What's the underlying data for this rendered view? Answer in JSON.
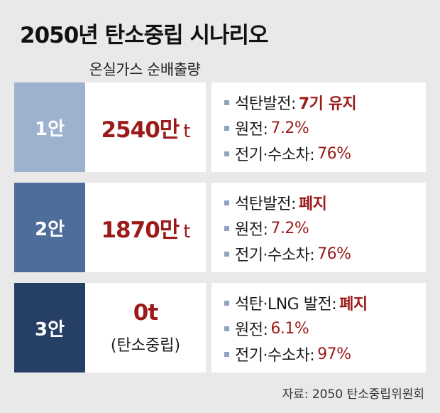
{
  "title": "2050년 탄소중립 시나리오",
  "column_header": "온실가스 순배출량",
  "colors": {
    "row1": "#9cb2cf",
    "row2": "#4d6d9b",
    "row3": "#253f67",
    "accent": "#9b1b1b",
    "bullet": "#8fa3bf"
  },
  "scenarios": [
    {
      "label": "1안",
      "value_number": "2540만",
      "value_unit": "t",
      "value_sub": "",
      "details": [
        {
          "key": "석탄발전:",
          "value": "7기 유지"
        },
        {
          "key": "원전:",
          "value": "7.2%"
        },
        {
          "key": "전기·수소차:",
          "value": "76%"
        }
      ]
    },
    {
      "label": "2안",
      "value_number": "1870만",
      "value_unit": "t",
      "value_sub": "",
      "details": [
        {
          "key": "석탄발전:",
          "value": "폐지"
        },
        {
          "key": "원전:",
          "value": "7.2%"
        },
        {
          "key": "전기·수소차:",
          "value": "76%"
        }
      ]
    },
    {
      "label": "3안",
      "value_number": "0t",
      "value_unit": "",
      "value_sub": "(탄소중립)",
      "details": [
        {
          "key": "석탄·LNG 발전:",
          "value": "폐지"
        },
        {
          "key": "원전:",
          "value": "6.1%"
        },
        {
          "key": "전기·수소차:",
          "value": "97%"
        }
      ]
    }
  ],
  "source": "자료: 2050 탄소중립위원회"
}
